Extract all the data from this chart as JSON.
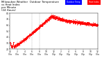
{
  "title": "Milwaukee Weather  Outdoor Temperature\nvs Heat Index\nper Minute\n(24 Hours)",
  "background_color": "#ffffff",
  "plot_bg": "#ffffff",
  "dot_color": "#ff0000",
  "legend_color1": "#0000ff",
  "legend_color2": "#ff0000",
  "legend_label1": "Outdoor Temp",
  "legend_label2": "Heat Index",
  "ylim": [
    24,
    84
  ],
  "xlim": [
    0,
    1440
  ],
  "vline1": 360,
  "vline2": 480,
  "title_fontsize": 2.8,
  "tick_fontsize": 2.2,
  "dot_size": 0.25,
  "yticks": [
    24,
    34,
    44,
    54,
    64,
    74,
    84
  ],
  "xtick_step": 120
}
